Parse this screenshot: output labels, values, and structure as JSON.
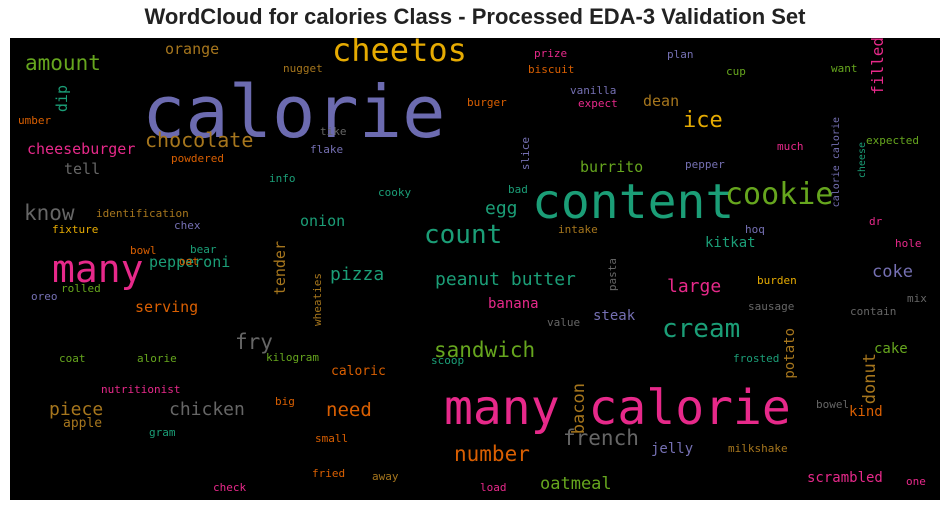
{
  "title": "WordCloud for calories Class - Processed EDA-3 Validation Set",
  "words": [
    {
      "text": "calorie",
      "color": "#6c6bb0"
    },
    {
      "text": "content",
      "color": "#1b9e77"
    },
    {
      "text": "many calorie",
      "color": "#e7298a"
    },
    {
      "text": "many",
      "color": "#e7298a"
    },
    {
      "text": "cheetos",
      "color": "#e6ab02"
    },
    {
      "text": "cookie",
      "color": "#66a61e"
    },
    {
      "text": "count",
      "color": "#1b9e77"
    },
    {
      "text": "cream",
      "color": "#1b9e77"
    },
    {
      "text": "chocolate",
      "color": "#a6761d"
    },
    {
      "text": "ice",
      "color": "#e6ab02"
    },
    {
      "text": "amount",
      "color": "#66a61e"
    },
    {
      "text": "know",
      "color": "#666666"
    },
    {
      "text": "fry",
      "color": "#666666"
    },
    {
      "text": "sandwich",
      "color": "#66a61e"
    },
    {
      "text": "number",
      "color": "#d95f02"
    },
    {
      "text": "french",
      "color": "#666666"
    },
    {
      "text": "need",
      "color": "#d95f02"
    },
    {
      "text": "chicken",
      "color": "#666666"
    },
    {
      "text": "piece",
      "color": "#a6761d"
    },
    {
      "text": "pizza",
      "color": "#1b9e77"
    },
    {
      "text": "peanut butter",
      "color": "#1b9e77"
    },
    {
      "text": "large",
      "color": "#e7298a"
    },
    {
      "text": "egg",
      "color": "#1b9e77"
    },
    {
      "text": "coke",
      "color": "#7570b3"
    },
    {
      "text": "oatmeal",
      "color": "#66a61e"
    },
    {
      "text": "cheeseburger",
      "color": "#e7298a"
    },
    {
      "text": "burrito",
      "color": "#66a61e"
    },
    {
      "text": "pepperoni",
      "color": "#1b9e77"
    },
    {
      "text": "serving",
      "color": "#d95f02"
    },
    {
      "text": "bacon",
      "color": "#a6761d"
    },
    {
      "text": "donut",
      "color": "#a6761d"
    },
    {
      "text": "tender",
      "color": "#a6761d"
    },
    {
      "text": "dean",
      "color": "#a6761d"
    },
    {
      "text": "orange",
      "color": "#a6761d"
    },
    {
      "text": "tell",
      "color": "#666666"
    },
    {
      "text": "onion",
      "color": "#1b9e77"
    },
    {
      "text": "kitkat",
      "color": "#1b9e77"
    },
    {
      "text": "banana",
      "color": "#e7298a"
    },
    {
      "text": "steak",
      "color": "#7570b3"
    },
    {
      "text": "jelly",
      "color": "#7570b3"
    },
    {
      "text": "scrambled",
      "color": "#e7298a"
    },
    {
      "text": "cake",
      "color": "#66a61e"
    },
    {
      "text": "kind",
      "color": "#d95f02"
    },
    {
      "text": "potato",
      "color": "#a6761d"
    },
    {
      "text": "filled",
      "color": "#e7298a"
    },
    {
      "text": "caloric",
      "color": "#d95f02"
    },
    {
      "text": "apple",
      "color": "#a6761d"
    },
    {
      "text": "dip",
      "color": "#1b9e77"
    },
    {
      "text": "slice",
      "color": "#7570b3"
    },
    {
      "text": "pepper",
      "color": "#7570b3"
    },
    {
      "text": "plan",
      "color": "#7570b3"
    },
    {
      "text": "prize",
      "color": "#e7298a"
    },
    {
      "text": "biscuit",
      "color": "#d95f02"
    },
    {
      "text": "nugget",
      "color": "#a6761d"
    },
    {
      "text": "cup",
      "color": "#66a61e"
    },
    {
      "text": "vanilla",
      "color": "#7570b3"
    },
    {
      "text": "expect",
      "color": "#e7298a"
    },
    {
      "text": "burger",
      "color": "#d95f02"
    },
    {
      "text": "want",
      "color": "#66a61e"
    },
    {
      "text": "calorie calorie",
      "color": "#7570b3"
    },
    {
      "text": "cheese",
      "color": "#1b9e77"
    },
    {
      "text": "expected",
      "color": "#66a61e"
    },
    {
      "text": "much",
      "color": "#e7298a"
    },
    {
      "text": "umber",
      "color": "#d95f02"
    },
    {
      "text": "tike",
      "color": "#666666"
    },
    {
      "text": "flake",
      "color": "#7570b3"
    },
    {
      "text": "powdered",
      "color": "#d95f02"
    },
    {
      "text": "info",
      "color": "#1b9e77"
    },
    {
      "text": "bad",
      "color": "#1b9e77"
    },
    {
      "text": "cooky",
      "color": "#1b9e77"
    },
    {
      "text": "identification",
      "color": "#a6761d"
    },
    {
      "text": "chex",
      "color": "#7570b3"
    },
    {
      "text": "fixture",
      "color": "#e6ab02"
    },
    {
      "text": "intake",
      "color": "#a6761d"
    },
    {
      "text": "hoq",
      "color": "#7570b3"
    },
    {
      "text": "dr",
      "color": "#e7298a"
    },
    {
      "text": "hole",
      "color": "#e7298a"
    },
    {
      "text": "bowl",
      "color": "#d95f02"
    },
    {
      "text": "bear",
      "color": "#1b9e77"
    },
    {
      "text": "oat",
      "color": "#d95f02"
    },
    {
      "text": "pasta",
      "color": "#666666"
    },
    {
      "text": "oreo",
      "color": "#7570b3"
    },
    {
      "text": "rolled",
      "color": "#66a61e"
    },
    {
      "text": "wheaties",
      "color": "#a6761d"
    },
    {
      "text": "burden",
      "color": "#e6ab02"
    },
    {
      "text": "sausage",
      "color": "#666666"
    },
    {
      "text": "mix",
      "color": "#666666"
    },
    {
      "text": "contain",
      "color": "#666666"
    },
    {
      "text": "value",
      "color": "#666666"
    },
    {
      "text": "coat",
      "color": "#66a61e"
    },
    {
      "text": "alorie",
      "color": "#66a61e"
    },
    {
      "text": "kilogram",
      "color": "#66a61e"
    },
    {
      "text": "scoop",
      "color": "#1b9e77"
    },
    {
      "text": "frosted",
      "color": "#1b9e77"
    },
    {
      "text": "nutritionist",
      "color": "#e7298a"
    },
    {
      "text": "big",
      "color": "#d95f02"
    },
    {
      "text": "gram",
      "color": "#1b9e77"
    },
    {
      "text": "bowel",
      "color": "#666666"
    },
    {
      "text": "small",
      "color": "#d95f02"
    },
    {
      "text": "milkshake",
      "color": "#a6761d"
    },
    {
      "text": "fried",
      "color": "#d95f02"
    },
    {
      "text": "away",
      "color": "#a6761d"
    },
    {
      "text": "check",
      "color": "#e7298a"
    },
    {
      "text": "load",
      "color": "#e7298a"
    },
    {
      "text": "one",
      "color": "#e7298a"
    }
  ]
}
